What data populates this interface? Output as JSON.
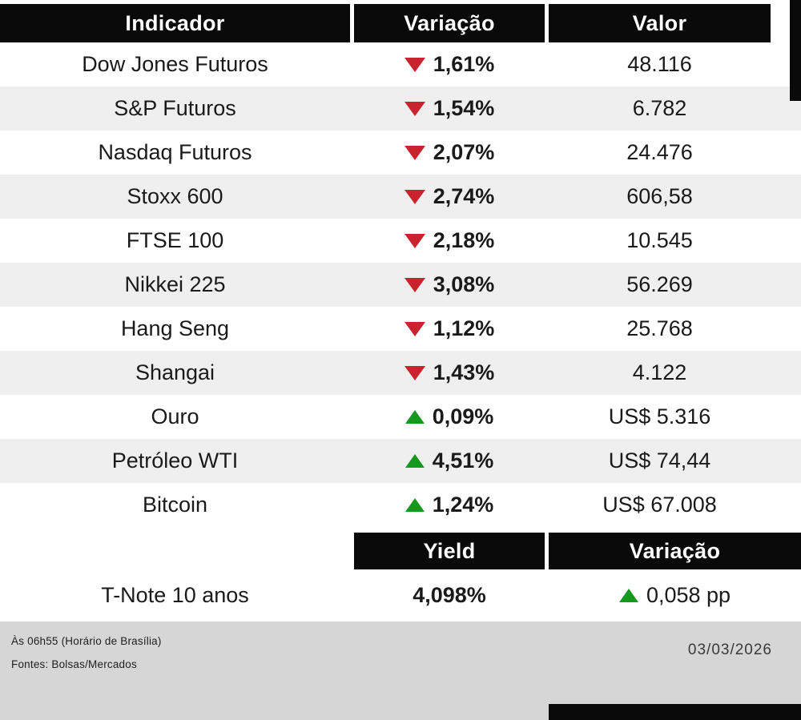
{
  "chart_data": [
    {
      "type": "table",
      "title": "",
      "columns": [
        "Indicador",
        "Variação",
        "Valor"
      ],
      "rows": [
        {
          "indicador": "Dow Jones Futuros",
          "direction": "down",
          "variacao": "1,61%",
          "valor": "48.116"
        },
        {
          "indicador": "S&P Futuros",
          "direction": "down",
          "variacao": "1,54%",
          "valor": "6.782"
        },
        {
          "indicador": "Nasdaq Futuros",
          "direction": "down",
          "variacao": "2,07%",
          "valor": "24.476"
        },
        {
          "indicador": "Stoxx 600",
          "direction": "down",
          "variacao": "2,74%",
          "valor": "606,58"
        },
        {
          "indicador": "FTSE 100",
          "direction": "down",
          "variacao": "2,18%",
          "valor": "10.545"
        },
        {
          "indicador": "Nikkei 225",
          "direction": "down",
          "variacao": "3,08%",
          "valor": "56.269"
        },
        {
          "indicador": "Hang Seng",
          "direction": "down",
          "variacao": "1,12%",
          "valor": "25.768"
        },
        {
          "indicador": "Shangai",
          "direction": "down",
          "variacao": "1,43%",
          "valor": "4.122"
        },
        {
          "indicador": "Ouro",
          "direction": "up",
          "variacao": "0,09%",
          "valor": "US$ 5.316"
        },
        {
          "indicador": "Petróleo WTI",
          "direction": "up",
          "variacao": "4,51%",
          "valor": "US$ 74,44"
        },
        {
          "indicador": "Bitcoin",
          "direction": "up",
          "variacao": "1,24%",
          "valor": "US$ 67.008"
        }
      ],
      "layout": {
        "striped": true,
        "stripe_starts_on": "second_row",
        "header_style": "black_bars"
      }
    },
    {
      "type": "table",
      "title": "",
      "columns": [
        "",
        "Yield",
        "Variação"
      ],
      "rows": [
        {
          "indicador": "T-Note 10 anos",
          "yield": "4,098%",
          "direction": "up",
          "variacao": "0,058 pp"
        }
      ]
    }
  ],
  "footer": {
    "time_note": "Às 06h55 (Horário de Brasília)",
    "sources": "Fontes: Bolsas/Mercados",
    "date": "03/03/2026"
  },
  "colors": {
    "up": "#14991e",
    "down": "#c8232e",
    "header_bg": "#0a0a0a",
    "row_alt": "#efefef",
    "footer_bg": "#d6d6d6"
  }
}
